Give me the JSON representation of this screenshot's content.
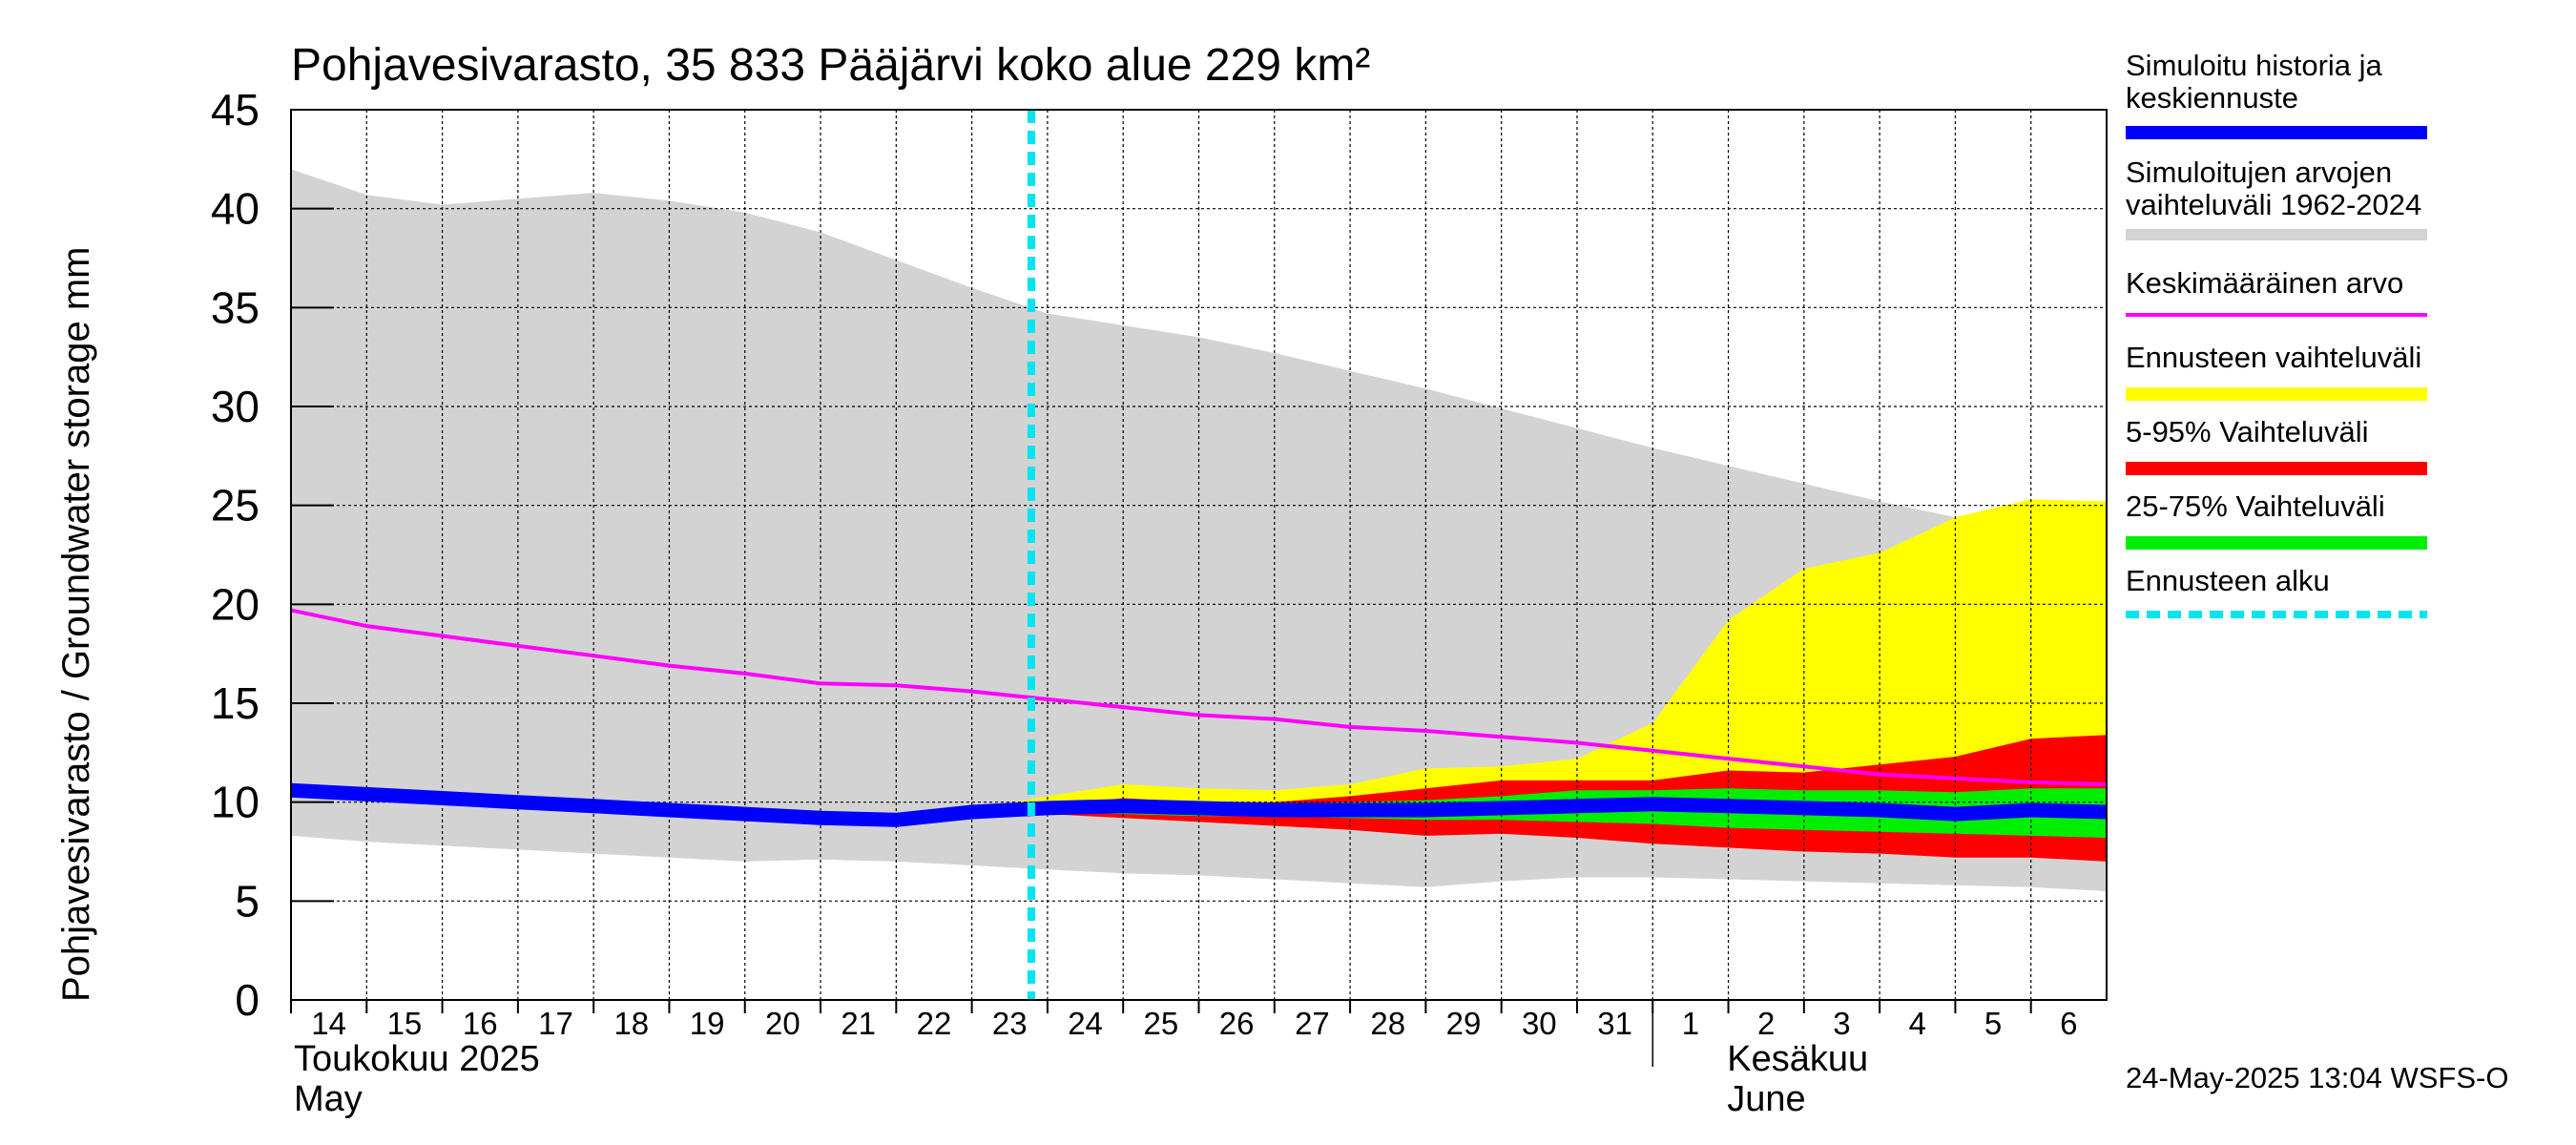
{
  "chart_data": {
    "type": "area",
    "title": "Pohjavesivarasto, 35 833 Pääjärvi koko alue 229 km²",
    "ylabel": "Pohjavesivarasto / Groundwater storage   mm",
    "ylim": [
      0,
      45
    ],
    "yticks": [
      0,
      5,
      10,
      15,
      20,
      25,
      30,
      35,
      40,
      45
    ],
    "x_dates": [
      "2025-05-14",
      "2025-05-15",
      "2025-05-16",
      "2025-05-17",
      "2025-05-18",
      "2025-05-19",
      "2025-05-20",
      "2025-05-21",
      "2025-05-22",
      "2025-05-23",
      "2025-05-24",
      "2025-05-25",
      "2025-05-26",
      "2025-05-27",
      "2025-05-28",
      "2025-05-29",
      "2025-05-30",
      "2025-05-31",
      "2025-06-01",
      "2025-06-02",
      "2025-06-03",
      "2025-06-04",
      "2025-06-05",
      "2025-06-06",
      "2025-06-07"
    ],
    "tick_labels": [
      "14",
      "15",
      "16",
      "17",
      "18",
      "19",
      "20",
      "21",
      "22",
      "23",
      "24",
      "25",
      "26",
      "27",
      "28",
      "29",
      "30",
      "31",
      "1",
      "2",
      "3",
      "4",
      "5",
      "6"
    ],
    "month_labels": [
      {
        "line1": "Toukokuu  2025",
        "line2": "May"
      },
      {
        "line1": "Kesäkuu",
        "line2": "June"
      }
    ],
    "forecast_start": "2025-05-24",
    "grid": true,
    "series": [
      {
        "name": "Simuloitujen arvojen vaihteluväli 1962-2024",
        "kind": "band",
        "color": "#d3d3d3",
        "upper": [
          42.0,
          40.7,
          40.2,
          40.5,
          40.8,
          40.4,
          39.8,
          38.8,
          37.4,
          36.0,
          34.7,
          34.1,
          33.5,
          32.7,
          31.8,
          30.9,
          29.9,
          28.9,
          27.9,
          27.0,
          26.1,
          25.2,
          24.4,
          23.5,
          22.8
        ],
        "lower": [
          8.3,
          8.0,
          7.8,
          7.6,
          7.4,
          7.2,
          7.0,
          7.1,
          7.0,
          6.8,
          6.6,
          6.4,
          6.3,
          6.1,
          5.9,
          5.7,
          6.0,
          6.2,
          6.2,
          6.1,
          6.0,
          5.9,
          5.8,
          5.7,
          5.5
        ]
      },
      {
        "name": "Ennusteen vaihteluväli",
        "kind": "band",
        "color": "#ffff00",
        "upper": [
          null,
          null,
          null,
          null,
          null,
          null,
          null,
          null,
          null,
          9.6,
          10.3,
          10.9,
          10.7,
          10.6,
          10.9,
          11.7,
          11.8,
          12.2,
          14.0,
          19.2,
          21.8,
          22.6,
          24.4,
          25.3,
          25.2
        ],
        "lower": [
          null,
          null,
          null,
          null,
          null,
          null,
          null,
          null,
          null,
          9.2,
          9.4,
          9.3,
          9.1,
          8.8,
          8.6,
          8.4,
          8.5,
          8.3,
          8.0,
          7.8,
          7.6,
          7.6,
          7.4,
          7.3,
          7.1
        ]
      },
      {
        "name": "5-95% Vaihteluväli",
        "kind": "band",
        "color": "#ff0000",
        "upper": [
          null,
          null,
          null,
          null,
          null,
          null,
          null,
          null,
          null,
          null,
          9.8,
          10.2,
          10.0,
          10.0,
          10.3,
          10.7,
          11.1,
          11.1,
          11.1,
          11.6,
          11.5,
          11.9,
          12.3,
          13.2,
          13.4
        ],
        "lower": [
          null,
          null,
          null,
          null,
          null,
          null,
          null,
          null,
          null,
          null,
          9.4,
          9.2,
          9.0,
          8.8,
          8.6,
          8.3,
          8.4,
          8.2,
          7.9,
          7.7,
          7.5,
          7.4,
          7.2,
          7.2,
          7.0
        ]
      },
      {
        "name": "25-75% Vaihteluväli",
        "kind": "band",
        "color": "#00ee00",
        "upper": [
          null,
          null,
          null,
          null,
          null,
          null,
          null,
          null,
          null,
          null,
          9.7,
          9.9,
          9.8,
          9.9,
          10.0,
          10.1,
          10.3,
          10.6,
          10.6,
          10.7,
          10.6,
          10.6,
          10.5,
          10.7,
          10.7
        ],
        "lower": [
          null,
          null,
          null,
          null,
          null,
          null,
          null,
          null,
          null,
          null,
          9.5,
          9.4,
          9.3,
          9.3,
          9.2,
          9.1,
          9.1,
          9.0,
          8.9,
          8.7,
          8.6,
          8.5,
          8.4,
          8.3,
          8.2
        ]
      },
      {
        "name": "Keskimääräinen arvo",
        "kind": "line",
        "color": "#ff00ff",
        "values": [
          19.7,
          18.9,
          18.4,
          17.9,
          17.4,
          16.9,
          16.5,
          16.0,
          15.9,
          15.6,
          15.2,
          14.8,
          14.4,
          14.2,
          13.8,
          13.6,
          13.3,
          13.0,
          12.6,
          12.2,
          11.8,
          11.4,
          11.2,
          11.0,
          10.9
        ]
      },
      {
        "name": "Simuloitu historia ja keskiennuste",
        "kind": "line",
        "color": "#0000ff",
        "values": [
          10.6,
          10.4,
          10.2,
          10.0,
          9.8,
          9.6,
          9.4,
          9.2,
          9.1,
          9.5,
          9.7,
          9.8,
          9.7,
          9.6,
          9.6,
          9.6,
          9.7,
          9.8,
          9.9,
          9.8,
          9.7,
          9.6,
          9.4,
          9.6,
          9.5
        ]
      }
    ]
  },
  "legend": [
    {
      "label": "Simuloitu historia ja\nkeskiennuste",
      "color": "#0000ff"
    },
    {
      "label": "Simuloitujen arvojen\nvaihteluväli 1962-2024",
      "color": "#d3d3d3"
    },
    {
      "label": "Keskimääräinen arvo",
      "color": "#ff00ff"
    },
    {
      "label": "Ennusteen vaihteluväli",
      "color": "#ffff00"
    },
    {
      "label": "5-95% Vaihteluväli",
      "color": "#ff0000"
    },
    {
      "label": "25-75% Vaihteluväli",
      "color": "#00ee00"
    },
    {
      "label": "Ennusteen alku",
      "color": "#00e5ee"
    }
  ],
  "footer": "24-May-2025 13:04 WSFS-O"
}
